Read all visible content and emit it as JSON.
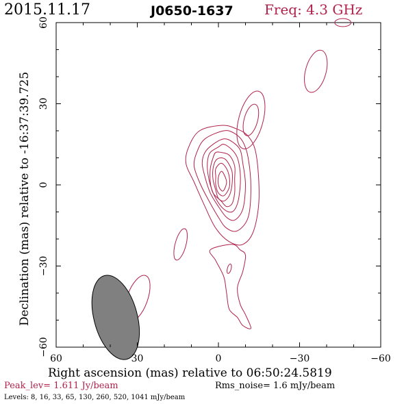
{
  "header": {
    "date": "2015.11.17",
    "source": "J0650-1637",
    "freq": "Freq: 4.3 GHz"
  },
  "colors": {
    "contour": "#b0204a",
    "frame": "#000000",
    "beam_fill": "#808080",
    "accent": "#b0204a"
  },
  "chart_data": {
    "type": "contour",
    "title": "J0650-1637",
    "xlabel": "Right ascension (mas) relative to 06:50:24.5819",
    "ylabel": "Declination (mas) relative to -16:37:39.725",
    "xlim": [
      60,
      -60
    ],
    "ylim": [
      -60,
      60
    ],
    "xticks": [
      60,
      30,
      0,
      -30,
      -60
    ],
    "yticks": [
      60,
      30,
      0,
      -30,
      -60
    ],
    "x_tick_labels": [
      "60",
      "30",
      "0",
      "−30",
      "−60"
    ],
    "y_tick_labels": [
      "60",
      "30",
      "0",
      "−30",
      "−60"
    ],
    "peak_level_jy_per_beam": 1.611,
    "rms_noise_mjy_per_beam": 1.6,
    "contour_levels_mjy_per_beam": [
      8,
      16,
      33,
      65,
      130,
      260,
      520,
      1041
    ],
    "beam": {
      "x": 38,
      "y": -49,
      "major_mas": 16,
      "minor_mas": 8,
      "pa_deg": -15
    },
    "core_contours": [
      {
        "level": 8,
        "points": [
          [
            -1,
            22
          ],
          [
            -6,
            21
          ],
          [
            -11,
            18
          ],
          [
            -14,
            11
          ],
          [
            -15,
            -5
          ],
          [
            -13,
            -17
          ],
          [
            -9,
            -22
          ],
          [
            -4,
            -21
          ],
          [
            1,
            -16
          ],
          [
            5,
            -8
          ],
          [
            9,
            1
          ],
          [
            12,
            8
          ],
          [
            11,
            14
          ],
          [
            7,
            20
          ]
        ]
      },
      {
        "level": 16,
        "points": [
          [
            -2,
            20
          ],
          [
            -6,
            19
          ],
          [
            -9,
            16
          ],
          [
            -11,
            10
          ],
          [
            -12,
            -1
          ],
          [
            -11,
            -12
          ],
          [
            -7,
            -17
          ],
          [
            -3,
            -16
          ],
          [
            0,
            -12
          ],
          [
            4,
            -5
          ],
          [
            7,
            1
          ],
          [
            9,
            7
          ],
          [
            8,
            12
          ],
          [
            5,
            17
          ]
        ]
      },
      {
        "level": 33,
        "points": [
          [
            -2,
            17
          ],
          [
            -5,
            16
          ],
          [
            -8,
            13
          ],
          [
            -9,
            8
          ],
          [
            -10,
            0
          ],
          [
            -9,
            -9
          ],
          [
            -6,
            -13
          ],
          [
            -3,
            -12
          ],
          [
            0,
            -8
          ],
          [
            3,
            -3
          ],
          [
            5,
            3
          ],
          [
            6,
            8
          ],
          [
            5,
            12
          ],
          [
            2,
            15
          ]
        ]
      },
      {
        "level": 65,
        "points": [
          [
            -2,
            15
          ],
          [
            -5,
            13
          ],
          [
            -7,
            10
          ],
          [
            -8,
            5
          ],
          [
            -8,
            -1
          ],
          [
            -7,
            -7
          ],
          [
            -5,
            -10
          ],
          [
            -2,
            -9
          ],
          [
            1,
            -5
          ],
          [
            3,
            0
          ],
          [
            4,
            5
          ],
          [
            4,
            9
          ],
          [
            3,
            12
          ],
          [
            0,
            14
          ]
        ]
      },
      {
        "level": 130,
        "points": [
          [
            -1,
            12
          ],
          [
            -4,
            11
          ],
          [
            -6,
            7
          ],
          [
            -6,
            2
          ],
          [
            -6,
            -3
          ],
          [
            -5,
            -7
          ],
          [
            -3,
            -8
          ],
          [
            -1,
            -6
          ],
          [
            2,
            -3
          ],
          [
            3,
            1
          ],
          [
            3,
            6
          ],
          [
            2,
            10
          ],
          [
            1,
            12
          ]
        ]
      },
      {
        "level": 260,
        "points": [
          [
            -1,
            10
          ],
          [
            -3,
            9
          ],
          [
            -5,
            5
          ],
          [
            -5,
            0
          ],
          [
            -4,
            -4
          ],
          [
            -2,
            -6
          ],
          [
            0,
            -5
          ],
          [
            1,
            -2
          ],
          [
            2,
            2
          ],
          [
            2,
            6
          ],
          [
            1,
            9
          ]
        ]
      },
      {
        "level": 520,
        "points": [
          [
            -1,
            8
          ],
          [
            -3,
            6
          ],
          [
            -4,
            3
          ],
          [
            -4,
            -1
          ],
          [
            -2,
            -4
          ],
          [
            0,
            -3
          ],
          [
            1,
            0
          ],
          [
            1,
            3
          ],
          [
            1,
            6
          ]
        ]
      },
      {
        "level": 1041,
        "points": [
          [
            -1,
            5
          ],
          [
            -2,
            4
          ],
          [
            -3,
            1
          ],
          [
            -2,
            -2
          ],
          [
            -1,
            -2
          ],
          [
            0,
            0
          ],
          [
            0,
            3
          ]
        ]
      }
    ],
    "tail_contour": {
      "level": 8,
      "points": [
        [
          -5,
          -22
        ],
        [
          -8,
          -24
        ],
        [
          -10,
          -26
        ],
        [
          -9,
          -32
        ],
        [
          -7,
          -38
        ],
        [
          -8,
          -44
        ],
        [
          -10,
          -48
        ],
        [
          -12,
          -53
        ],
        [
          -9,
          -52
        ],
        [
          -7,
          -49
        ],
        [
          -4,
          -46
        ],
        [
          -3,
          -40
        ],
        [
          -2,
          -34
        ],
        [
          1,
          -28
        ],
        [
          3,
          -24
        ]
      ]
    },
    "components": [
      {
        "level": 8,
        "cx": -12,
        "cy": 24,
        "rx": 4.5,
        "ry": 11,
        "rot_deg": 15
      },
      {
        "level": 16,
        "cx": -12,
        "cy": 24,
        "rx": 2.5,
        "ry": 6,
        "rot_deg": 15
      },
      {
        "level": 8,
        "cx": -36,
        "cy": 42,
        "rx": 3.8,
        "ry": 8,
        "rot_deg": 15
      },
      {
        "level": 8,
        "cx": -46,
        "cy": 60,
        "rx": 3,
        "ry": 1.5,
        "rot_deg": 0
      },
      {
        "level": 8,
        "cx": 14,
        "cy": -22,
        "rx": 2,
        "ry": 6,
        "rot_deg": 15
      },
      {
        "level": 8,
        "cx": -4,
        "cy": -31,
        "rx": 0.7,
        "ry": 1.8,
        "rot_deg": 15
      },
      {
        "level": 8,
        "cx": 30,
        "cy": -42,
        "rx": 3.8,
        "ry": 9,
        "rot_deg": 20
      }
    ]
  },
  "footer": {
    "peak_label": "Peak_lev=  1.611 Jy/beam",
    "rms_label": "Rms_noise=   1.6 mJy/beam",
    "levels_label": "Levels:   8,  16,  33,  65, 130, 260, 520, 1041 mJy/beam"
  }
}
